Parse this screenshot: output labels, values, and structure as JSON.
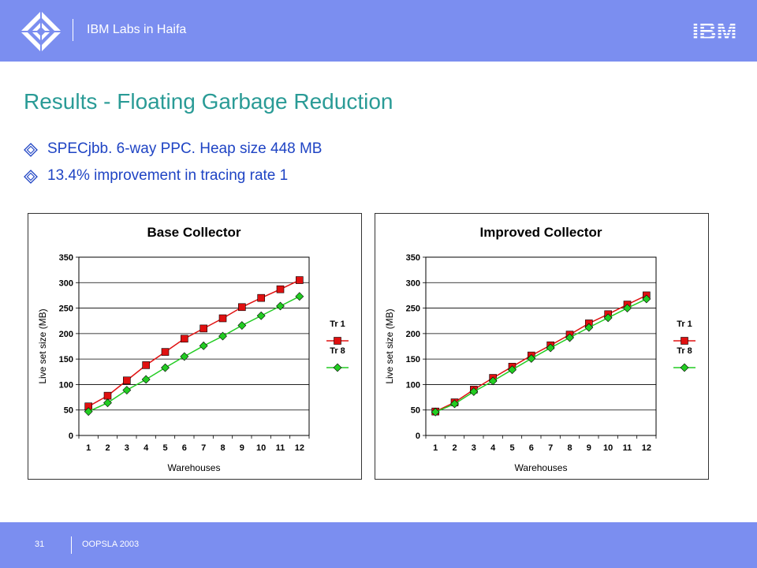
{
  "header": {
    "lab_title": "IBM Labs in Haifa",
    "brand": "IBM"
  },
  "slide": {
    "title": "Results - Floating Garbage Reduction",
    "bullets": [
      {
        "text": "SPECjbb. 6-way PPC. Heap size 448 MB"
      },
      {
        "text": "13.4% improvement in tracing rate 1"
      }
    ]
  },
  "colors": {
    "header_bg": "#7b8ef0",
    "title": "#2a9b96",
    "bullet_text": "#1f44c4",
    "series_tr1": "#e01010",
    "series_tr8": "#22cc22"
  },
  "chart_data": [
    {
      "type": "line",
      "title": "Base Collector",
      "xlabel": "Warehouses",
      "ylabel": "Live set size (MB)",
      "categories": [
        "1",
        "2",
        "3",
        "4",
        "5",
        "6",
        "7",
        "8",
        "9",
        "10",
        "11",
        "12"
      ],
      "ylim": [
        0,
        350
      ],
      "yticks": [
        "0",
        "50",
        "100",
        "150",
        "200",
        "250",
        "300",
        "350"
      ],
      "grid": true,
      "legend_position": "right",
      "series": [
        {
          "name": "Tr 1",
          "marker": "square",
          "values": [
            57,
            78,
            108,
            138,
            164,
            190,
            210,
            230,
            252,
            270,
            287,
            305
          ]
        },
        {
          "name": "Tr 8",
          "marker": "diamond",
          "values": [
            47,
            64,
            89,
            110,
            133,
            155,
            176,
            195,
            216,
            235,
            254,
            273
          ]
        }
      ]
    },
    {
      "type": "line",
      "title": "Improved Collector",
      "xlabel": "Warehouses",
      "ylabel": "Live set size (MB)",
      "categories": [
        "1",
        "2",
        "3",
        "4",
        "5",
        "6",
        "7",
        "8",
        "9",
        "10",
        "11",
        "12"
      ],
      "ylim": [
        0,
        350
      ],
      "yticks": [
        "0",
        "50",
        "100",
        "150",
        "200",
        "250",
        "300",
        "350"
      ],
      "grid": true,
      "legend_position": "right",
      "series": [
        {
          "name": "Tr 1",
          "marker": "square",
          "values": [
            47,
            65,
            90,
            113,
            135,
            157,
            177,
            198,
            220,
            238,
            257,
            275
          ]
        },
        {
          "name": "Tr 8",
          "marker": "diamond",
          "values": [
            46,
            62,
            86,
            107,
            129,
            151,
            172,
            192,
            212,
            231,
            250,
            268
          ]
        }
      ]
    }
  ],
  "footer": {
    "page": "31",
    "conference": "OOPSLA 2003"
  }
}
